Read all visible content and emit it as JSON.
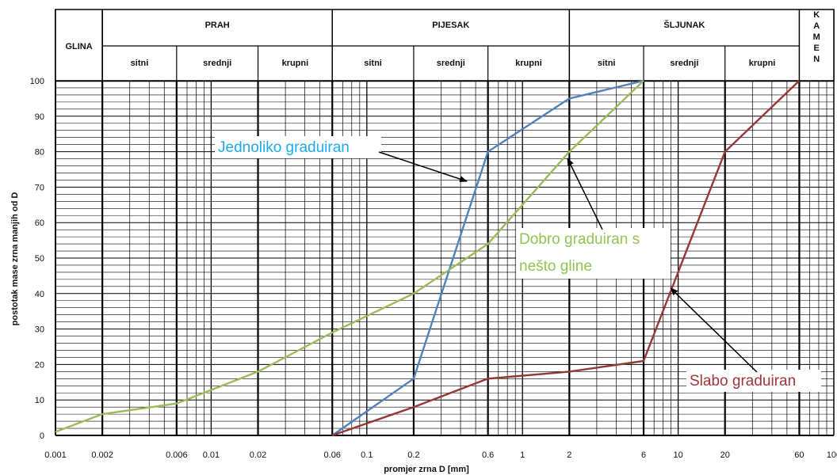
{
  "chart_data": {
    "type": "line",
    "xscale": "log",
    "xlim": [
      0.001,
      100
    ],
    "ylim": [
      0,
      100
    ],
    "xlabel": "promjer zrna D [mm]",
    "ylabel": "postotak mase zrna manjih od D",
    "x_tick_labels": [
      "0.001",
      "0.002",
      "0.006",
      "0.01",
      "0.02",
      "0.06",
      "0.1",
      "0.2",
      "0.6",
      "1",
      "2",
      "6",
      "10",
      "20",
      "60",
      "100"
    ],
    "y_tick_labels": [
      "0",
      "10",
      "20",
      "30",
      "40",
      "50",
      "60",
      "70",
      "80",
      "90",
      "100"
    ],
    "grid": true,
    "header": {
      "glina": "GLINA",
      "kamen": "KAMEN",
      "groups": [
        {
          "name": "PRAH",
          "subs": [
            "sitni",
            "srednji",
            "krupni"
          ]
        },
        {
          "name": "PIJESAK",
          "subs": [
            "sitni",
            "srednji",
            "krupni"
          ]
        },
        {
          "name": "ŠLJUNAK",
          "subs": [
            "sitni",
            "srednji",
            "krupni"
          ]
        }
      ]
    },
    "series": [
      {
        "name": "Jednoliko graduiran",
        "color": "#4f81bd",
        "x": [
          0.06,
          0.2,
          0.6,
          2,
          6
        ],
        "y": [
          0,
          16,
          80,
          95,
          100
        ]
      },
      {
        "name": "Dobro graduiran s nešto gline",
        "color": "#9bbb59",
        "x": [
          0.001,
          0.002,
          0.006,
          0.02,
          0.06,
          0.2,
          0.6,
          2,
          6
        ],
        "y": [
          1,
          6,
          9,
          18,
          29,
          40,
          54,
          80,
          100
        ]
      },
      {
        "name": "Slabo graduiran",
        "color": "#953735",
        "x": [
          0.06,
          0.2,
          0.6,
          2,
          6,
          20,
          60
        ],
        "y": [
          0,
          8,
          16,
          18,
          21,
          80,
          100
        ]
      }
    ]
  }
}
